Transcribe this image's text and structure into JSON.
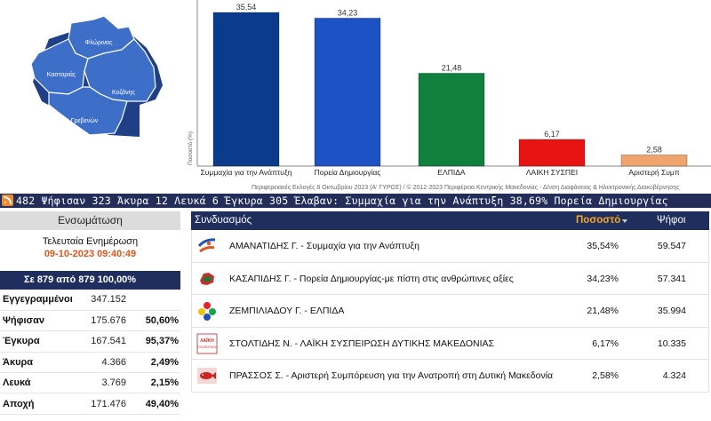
{
  "map": {
    "regions": [
      "Φλώρινας",
      "Καστοριάς",
      "Κοζάνης",
      "Γρεβενών"
    ],
    "fill_color": "#3d6fc9",
    "shadow_color": "#1f3f86"
  },
  "chart_data": {
    "type": "bar",
    "categories": [
      "Συμμαχία για την Ανάπτυξη",
      "Πορεία Δημιουργίας",
      "ΕΛΠΙΔΑ",
      "ΛΑΙΚΗ ΣΥΣΠΕΙ",
      "Αριστερή Συμπ"
    ],
    "values": [
      35.54,
      34.23,
      21.48,
      6.17,
      2.58
    ],
    "value_labels": [
      "35,54",
      "34,23",
      "21,48",
      "6,17",
      "2,58"
    ],
    "colors": [
      "#0b3c8c",
      "#1c52c4",
      "#11803f",
      "#e81313",
      "#f0a36d"
    ],
    "ylabel": "Ποσοστό (%)",
    "ylim": [
      0,
      35.54
    ],
    "grid": false
  },
  "chart_footer": "Περιφερειακές Εκλογές 8 Οκτωβρίου 2023 (Α' ΓΥΡΟΣ) / © 2012-2023 Περιφέρεια Κεντρικής Μακεδονίας - Δ/νση Διαφάνειας & Ηλεκτρονικής Διακυβέρνησης",
  "ticker": {
    "text": "482  Ψήφισαν 323  Άκυρα 12  Λευκά 6  Έγκυρα 305  Έλαβαν: Συμμαχία για την Ανάπτυξη 38,69%  Πορεία Δημιουργίας"
  },
  "left": {
    "header": "Ενσωμάτωση",
    "update_title": "Τελευταία Ενημέρωση",
    "update_time": "09-10-2023 09:40:49",
    "count": "Σε 879 από  879  100,00%",
    "stats": [
      {
        "label": "Εγγεγραμμένοι",
        "value": "347.152",
        "pct": ""
      },
      {
        "label": "Ψήφισαν",
        "value": "175.676",
        "pct": "50,60%"
      },
      {
        "label": "Έγκυρα",
        "value": "167.541",
        "pct": "95,37%"
      },
      {
        "label": "Άκυρα",
        "value": "4.366",
        "pct": "2,49%"
      },
      {
        "label": "Λευκά",
        "value": "3.769",
        "pct": "2,15%"
      },
      {
        "label": "Αποχή",
        "value": "171.476",
        "pct": "49,40%"
      }
    ]
  },
  "results": {
    "col_name": "Συνδυασμός",
    "col_pct": "Ποσοστό",
    "col_votes": "Ψήφοι",
    "rows": [
      {
        "name": "ΑΜΑΝΑΤΙΔΗΣ Γ. - Συμμαχία για την Ανάπτυξη",
        "pct": "35,54%",
        "votes": "59.547",
        "icon": "party-logo-swoosh"
      },
      {
        "name": "ΚΑΣΑΠΙΔΗΣ Γ. - Πορεία Δημιουργίας-με πίστη στις ανθρώπινες αξίες",
        "pct": "34,23%",
        "votes": "57.341",
        "icon": "party-logo-region"
      },
      {
        "name": "ΖΕΜΠΙΛΙΑΔΟΥ Γ. - ΕΛΠΙΔΑ",
        "pct": "21,48%",
        "votes": "35.994",
        "icon": "party-logo-flower"
      },
      {
        "name": "ΣΤΟΛΤΙΔΗΣ Ν. - ΛΑΪΚΗ ΣΥΣΠΕΙΡΩΣΗ ΔΥΤΙΚΗΣ ΜΑΚΕΔΟΝΙΑΣ",
        "pct": "6,17%",
        "votes": "10.335",
        "icon": "party-logo-laiki",
        "logo_text": "ΛΑΪΚΗ\nΣΥΣΠΕΙΡΩΣΗ"
      },
      {
        "name": "ΠΡΑΣΣΟΣ Σ. - Αριστερή Συμπόρευση για την Ανατροπή στη Δυτική Μακεδονία",
        "pct": "2,58%",
        "votes": "4.324",
        "icon": "party-logo-fish"
      }
    ]
  }
}
